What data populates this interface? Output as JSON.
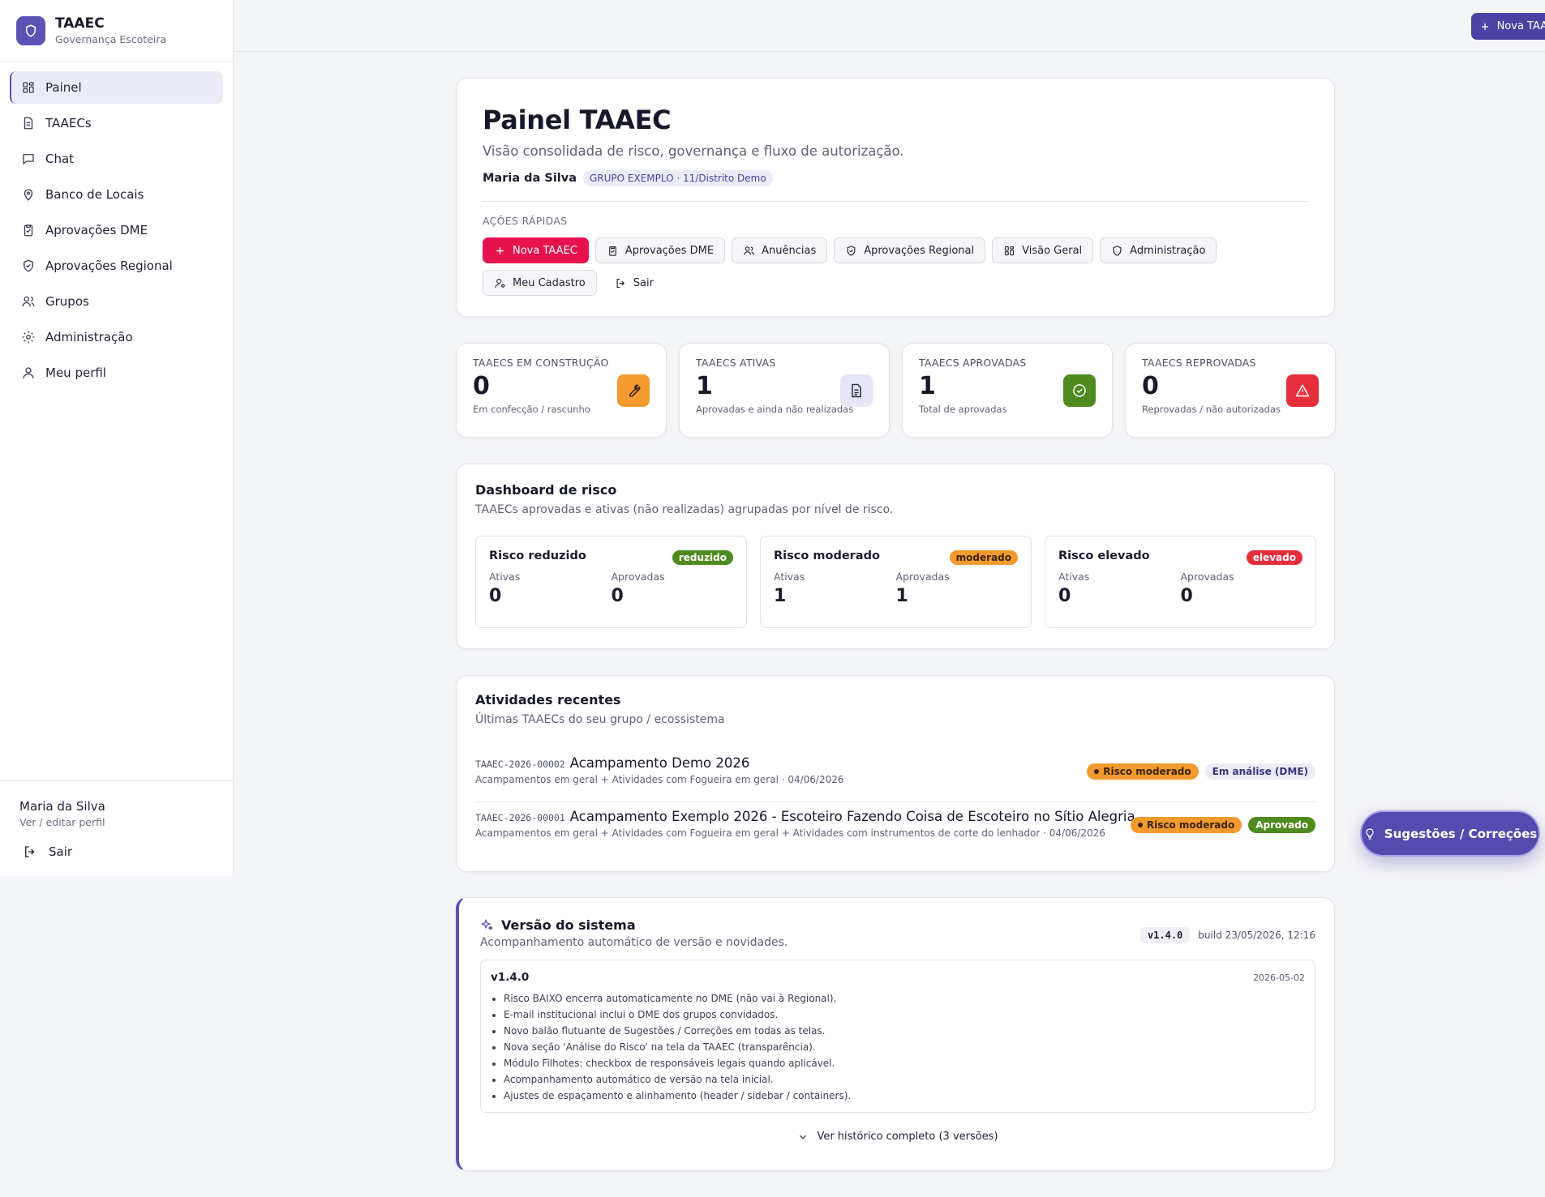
{
  "brand": {
    "title": "TAAEC",
    "subtitle": "Governança Escoteira"
  },
  "sidebar": {
    "items": [
      {
        "label": "Painel",
        "icon": "grid-icon"
      },
      {
        "label": "TAAECs",
        "icon": "file-icon"
      },
      {
        "label": "Chat",
        "icon": "chat-icon"
      },
      {
        "label": "Banco de Locais",
        "icon": "map-pin-icon"
      },
      {
        "label": "Aprovações DME",
        "icon": "clipboard-icon"
      },
      {
        "label": "Aprovações Regional",
        "icon": "shield-check-icon"
      },
      {
        "label": "Grupos",
        "icon": "users-icon"
      },
      {
        "label": "Administração",
        "icon": "gear-icon"
      },
      {
        "label": "Meu perfil",
        "icon": "user-icon"
      }
    ],
    "footer": {
      "name": "Maria da Silva",
      "link": "Ver / editar perfil",
      "logout": "Sair"
    }
  },
  "topbar": {
    "new_button": "Nova TAAEC"
  },
  "hero": {
    "title": "Painel TAAEC",
    "subtitle": "Visão consolidada de risco, governança e fluxo de autorização.",
    "user": "Maria da Silva",
    "group": "GRUPO EXEMPLO · 11/Distrito Demo",
    "quick_label": "AÇÕES RÁPIDAS",
    "quick_actions": [
      "Nova TAAEC",
      "Aprovações DME",
      "Anuências",
      "Aprovações Regional",
      "Visão Geral",
      "Administração",
      "Meu Cadastro",
      "Sair"
    ]
  },
  "stats": [
    {
      "label": "TAAECS EM CONSTRUÇÃO",
      "value": "0",
      "desc": "Em confecção / rascunho",
      "icon": "wrench-icon",
      "color": "#f39a2e"
    },
    {
      "label": "TAAECS ATIVAS",
      "value": "1",
      "desc": "Aprovadas e ainda não realizadas",
      "icon": "document-icon",
      "color": "#e6e6f6"
    },
    {
      "label": "TAAECS APROVADAS",
      "value": "1",
      "desc": "Total de aprovadas",
      "icon": "check-circle-icon",
      "color": "#4e8a1e"
    },
    {
      "label": "TAAECS REPROVADAS",
      "value": "0",
      "desc": "Reprovadas / não autorizadas",
      "icon": "warning-icon",
      "color": "#e52d3c"
    }
  ],
  "risk": {
    "title": "Dashboard de risco",
    "subtitle": "TAAECs aprovadas e ativas (não realizadas) agrupadas por nível de risco.",
    "col_active": "Ativas",
    "col_approved": "Aprovadas",
    "levels": [
      {
        "name": "Risco reduzido",
        "tag": "reduzido",
        "active": "0",
        "approved": "0",
        "color": "#4e8a1e"
      },
      {
        "name": "Risco moderado",
        "tag": "moderado",
        "active": "1",
        "approved": "1",
        "color": "#f39a2e"
      },
      {
        "name": "Risco elevado",
        "tag": "elevado",
        "active": "0",
        "approved": "0",
        "color": "#e52d3c"
      }
    ]
  },
  "recent": {
    "title": "Atividades recentes",
    "subtitle": "Últimas TAAECs do seu grupo / ecossistema",
    "items": [
      {
        "code": "TAAEC-2026-00002",
        "title": "Acampamento Demo 2026",
        "meta": "Acampamentos em geral + Atividades com Fogueira em geral · 04/06/2026",
        "risk": "Risco moderado",
        "status": "Em análise (DME)"
      },
      {
        "code": "TAAEC-2026-00001",
        "title": "Acampamento Exemplo 2026 - Escoteiro Fazendo Coisa de Escoteiro no Sítio Alegria",
        "meta": "Acampamentos em geral + Atividades com Fogueira em geral + Atividades com instrumentos de corte do lenhador · 04/06/2026",
        "risk": "Risco moderado",
        "status": "Aprovado"
      }
    ]
  },
  "version": {
    "title": "Versão do sistema",
    "subtitle": "Acompanhamento automático de versão e novidades.",
    "chip": "v1.4.0",
    "build": "build 23/05/2026, 12:16",
    "release": "v1.4.0",
    "date": "2026-05-02",
    "notes": [
      "Risco BAIXO encerra automaticamente no DME (não vai à Regional).",
      "E-mail institucional inclui o DME dos grupos convidados.",
      "Novo balão flutuante de Sugestões / Correções em todas as telas.",
      "Nova seção 'Análise do Risco' na tela da TAAEC (transparência).",
      "Módulo Filhotes: checkbox de responsáveis legais quando aplicável.",
      "Acompanhamento automático de versão na tela inicial.",
      "Ajustes de espaçamento e alinhamento (header / sidebar / containers)."
    ],
    "history": "Ver histórico completo (3 versões)"
  },
  "fab": {
    "label": "Sugestões / Correções"
  }
}
